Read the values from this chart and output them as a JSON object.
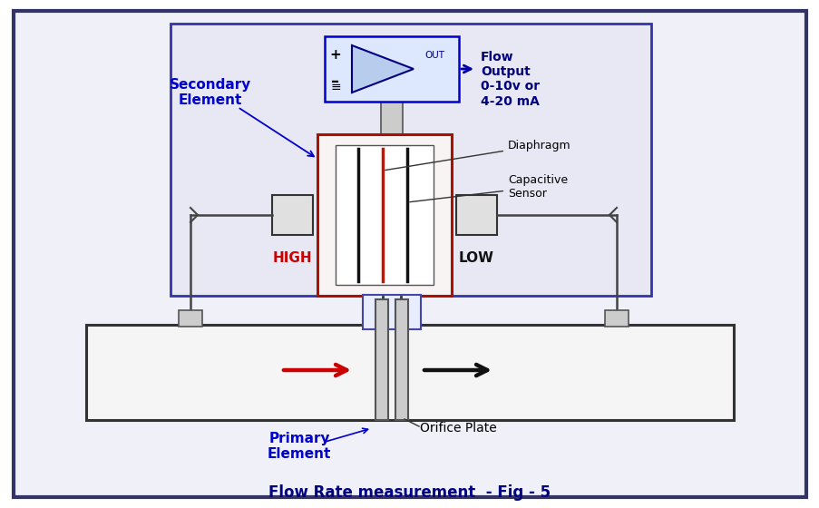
{
  "outer_ec": "#333366",
  "outer_fc": "#f0f0f8",
  "sec_box_ec": "#3333aa",
  "sec_box_fc": "#e8e8f5",
  "amp_box_ec": "#0000cc",
  "amp_box_fc": "#dde8ff",
  "sensor_outer_ec": "#aa1100",
  "sensor_outer_fc": "#f8f4f4",
  "sensor_inner_fc": "#ffffff",
  "port_ec": "#333333",
  "port_fc": "#e0e0e0",
  "pipe_ec": "#333333",
  "pipe_fc": "#f5f5f5",
  "orifice_box_ec": "#4444aa",
  "orifice_box_fc": "#e8eeff",
  "tap_fc": "#cccccc",
  "line_color": "#444444",
  "high_color": "#cc0000",
  "low_color": "#111111",
  "sec_label_color": "#0000cc",
  "prim_label_color": "#0000cc",
  "flow_output_color": "#000080",
  "arrow_blue": "#0000aa",
  "arrow_red": "#cc0000",
  "arrow_black": "#111111",
  "diag_line_color": "#222222",
  "title_color": "#000080",
  "title": "Flow Rate measurement  - Fig - 5",
  "title_fontsize": 12,
  "sec_label": "Secondary\nElement",
  "prim_label": "Primary\nElement",
  "flow_text": "Flow\nOutput\n0-10v or\n4-20 mA",
  "diaphragm_label": "Diaphragm",
  "cap_label": "Capacitive\nSensor",
  "orifice_label": "Orifice Plate",
  "high_label": "HIGH",
  "low_label": "LOW"
}
